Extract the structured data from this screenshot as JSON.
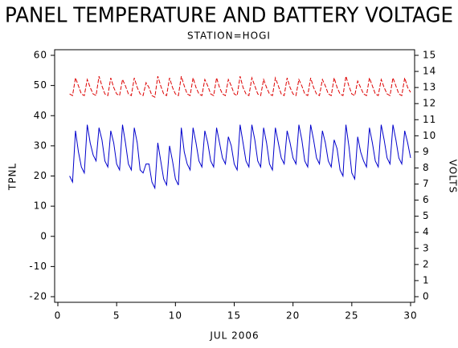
{
  "chart_data": {
    "type": "line",
    "title": "PANEL TEMPERATURE AND BATTERY VOLTAGE",
    "subtitle": "STATION=HOGI",
    "x_label": "JUL 2006",
    "y_label": "TPNL",
    "y2_label": "VOLTS",
    "xlim": [
      0,
      30
    ],
    "xticks": [
      0,
      5,
      10,
      15,
      20,
      25,
      30
    ],
    "ylim": [
      -20,
      60
    ],
    "yticks": [
      -20,
      -10,
      0,
      10,
      20,
      30,
      40,
      50,
      60
    ],
    "y2lim": [
      0,
      15
    ],
    "y2ticks": [
      0,
      1,
      2,
      3,
      4,
      5,
      6,
      7,
      8,
      9,
      10,
      11,
      12,
      13,
      14,
      15
    ],
    "x": [
      1,
      1.25,
      1.5,
      1.75,
      2,
      2.25,
      2.5,
      2.75,
      3,
      3.25,
      3.5,
      3.75,
      4,
      4.25,
      4.5,
      4.75,
      5,
      5.25,
      5.5,
      5.75,
      6,
      6.25,
      6.5,
      6.75,
      7,
      7.25,
      7.5,
      7.75,
      8,
      8.25,
      8.5,
      8.75,
      9,
      9.25,
      9.5,
      9.75,
      10,
      10.25,
      10.5,
      10.75,
      11,
      11.25,
      11.5,
      11.75,
      12,
      12.25,
      12.5,
      12.75,
      13,
      13.25,
      13.5,
      13.75,
      14,
      14.25,
      14.5,
      14.75,
      15,
      15.25,
      15.5,
      15.75,
      16,
      16.25,
      16.5,
      16.75,
      17,
      17.25,
      17.5,
      17.75,
      18,
      18.25,
      18.5,
      18.75,
      19,
      19.25,
      19.5,
      19.75,
      20,
      20.25,
      20.5,
      20.75,
      21,
      21.25,
      21.5,
      21.75,
      22,
      22.25,
      22.5,
      22.75,
      23,
      23.25,
      23.5,
      23.75,
      24,
      24.25,
      24.5,
      24.75,
      25,
      25.25,
      25.5,
      25.75,
      26,
      26.25,
      26.5,
      26.75,
      27,
      27.25,
      27.5,
      27.75,
      28,
      28.25,
      28.5,
      28.75,
      29,
      29.25,
      29.5,
      29.75,
      30
    ],
    "series": [
      {
        "name": "TPNL",
        "color": "#0000cc",
        "axis": "y",
        "dashed": false,
        "values": [
          20,
          18,
          35,
          28,
          23,
          21,
          37,
          31,
          27,
          25,
          36,
          32,
          25,
          23,
          35,
          31,
          24,
          22,
          37,
          31,
          24,
          22,
          36,
          31,
          22,
          21,
          24,
          24,
          18,
          16,
          31,
          25,
          19,
          17,
          30,
          25,
          19,
          17,
          36,
          28,
          24,
          22,
          36,
          31,
          25,
          23,
          35,
          31,
          25,
          23,
          36,
          31,
          26,
          24,
          33,
          30,
          24,
          22,
          37,
          31,
          25,
          23,
          37,
          32,
          25,
          23,
          36,
          31,
          24,
          22,
          36,
          31,
          26,
          24,
          35,
          31,
          26,
          24,
          37,
          32,
          25,
          23,
          37,
          32,
          26,
          24,
          35,
          31,
          25,
          23,
          32,
          29,
          22,
          20,
          37,
          30,
          21,
          19,
          33,
          28,
          25,
          23,
          36,
          31,
          25,
          23,
          37,
          32,
          26,
          24,
          37,
          32,
          26,
          24,
          35,
          31,
          26
        ]
      },
      {
        "name": "VOLTS",
        "color": "#dd0000",
        "axis": "y2",
        "dashed": true,
        "values": [
          12.6,
          12.5,
          13.6,
          13.1,
          12.6,
          12.5,
          13.5,
          13.0,
          12.6,
          12.5,
          13.7,
          13.1,
          12.6,
          12.5,
          13.6,
          13.0,
          12.6,
          12.5,
          13.5,
          13.1,
          12.6,
          12.5,
          13.6,
          13.0,
          12.6,
          12.5,
          13.3,
          13.0,
          12.5,
          12.4,
          13.7,
          13.1,
          12.6,
          12.5,
          13.6,
          13.0,
          12.6,
          12.5,
          13.7,
          13.1,
          12.6,
          12.5,
          13.6,
          13.0,
          12.6,
          12.5,
          13.5,
          13.1,
          12.6,
          12.5,
          13.6,
          13.0,
          12.6,
          12.5,
          13.5,
          13.1,
          12.6,
          12.5,
          13.7,
          13.0,
          12.6,
          12.5,
          13.6,
          13.1,
          12.6,
          12.5,
          13.5,
          13.0,
          12.6,
          12.5,
          13.6,
          13.1,
          12.6,
          12.5,
          13.6,
          13.0,
          12.6,
          12.5,
          13.5,
          13.1,
          12.6,
          12.5,
          13.6,
          13.0,
          12.6,
          12.5,
          13.5,
          13.1,
          12.6,
          12.5,
          13.6,
          13.0,
          12.6,
          12.5,
          13.7,
          13.1,
          12.6,
          12.5,
          13.4,
          13.0,
          12.6,
          12.5,
          13.6,
          13.1,
          12.6,
          12.5,
          13.5,
          13.0,
          12.6,
          12.5,
          13.6,
          13.1,
          12.6,
          12.5,
          13.6,
          13.0,
          12.7
        ]
      }
    ]
  }
}
